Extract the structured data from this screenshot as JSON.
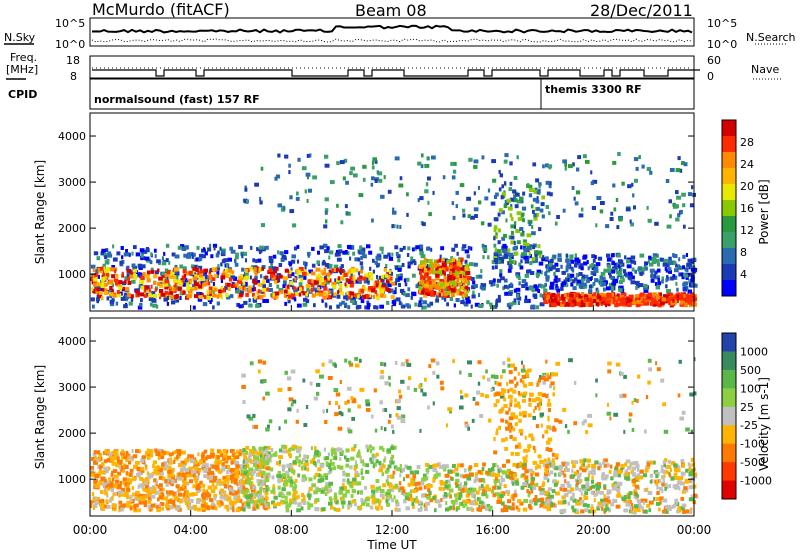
{
  "header": {
    "station": "McMurdo (fitACF)",
    "beam": "Beam 08",
    "date": "28/Dec/2011"
  },
  "noise_panel": {
    "left_label": "N.Sky",
    "right_label": "N.Search",
    "left_ticks": [
      "10^5",
      "10^0"
    ],
    "right_ticks": [
      "10^5",
      "10^0"
    ]
  },
  "freq_panel": {
    "left_label_line1": "Freq.",
    "left_label_line2": "[MHz]",
    "right_label": "Nave",
    "left_ticks": [
      "18",
      "8"
    ],
    "right_ticks": [
      "60",
      "0"
    ]
  },
  "cpid": {
    "label": "CPID",
    "modes": [
      {
        "text": "normalsound (fast) 157 RF",
        "start_hour": 0
      },
      {
        "text": "themis 3300 RF",
        "start_hour": 18
      }
    ]
  },
  "chart_data": [
    {
      "type": "heatmap",
      "name": "power",
      "ylabel": "Slant Range [km]",
      "xlabel": "",
      "xlim": [
        0,
        24
      ],
      "ylim": [
        200,
        4500
      ],
      "y_ticks": [
        1000,
        2000,
        3000,
        4000
      ],
      "colorbar_label": "Power [dB]",
      "colorbar_ticks": [
        "28",
        "24",
        "20",
        "16",
        "12",
        "8",
        "4"
      ],
      "colorbar_colors": [
        "#d40000",
        "#ff2a00",
        "#ff8a00",
        "#ffb400",
        "#e8e800",
        "#8ac800",
        "#2a9a40",
        "#3aa06a",
        "#2a6ab0",
        "#1a3ab8",
        "#0000ff"
      ]
    },
    {
      "type": "heatmap",
      "name": "velocity",
      "ylabel": "Slant Range [km]",
      "xlabel": "Time UT",
      "xlim": [
        0,
        24
      ],
      "ylim": [
        200,
        4500
      ],
      "y_ticks": [
        1000,
        2000,
        3000,
        4000
      ],
      "x_tick_labels": [
        "00:00",
        "04:00",
        "08:00",
        "12:00",
        "16:00",
        "20:00",
        "00:00"
      ],
      "colorbar_label": "Velocity [m s-1]",
      "colorbar_ticks": [
        "1000",
        "500",
        "100",
        "25",
        "-25",
        "-100",
        "-500",
        "-1000"
      ],
      "colorbar_colors": [
        "#2244aa",
        "#3a8a60",
        "#5ab848",
        "#8ad040",
        "#c0c0c0",
        "#ffb400",
        "#ff7a00",
        "#ff3a00",
        "#e00000"
      ]
    }
  ]
}
